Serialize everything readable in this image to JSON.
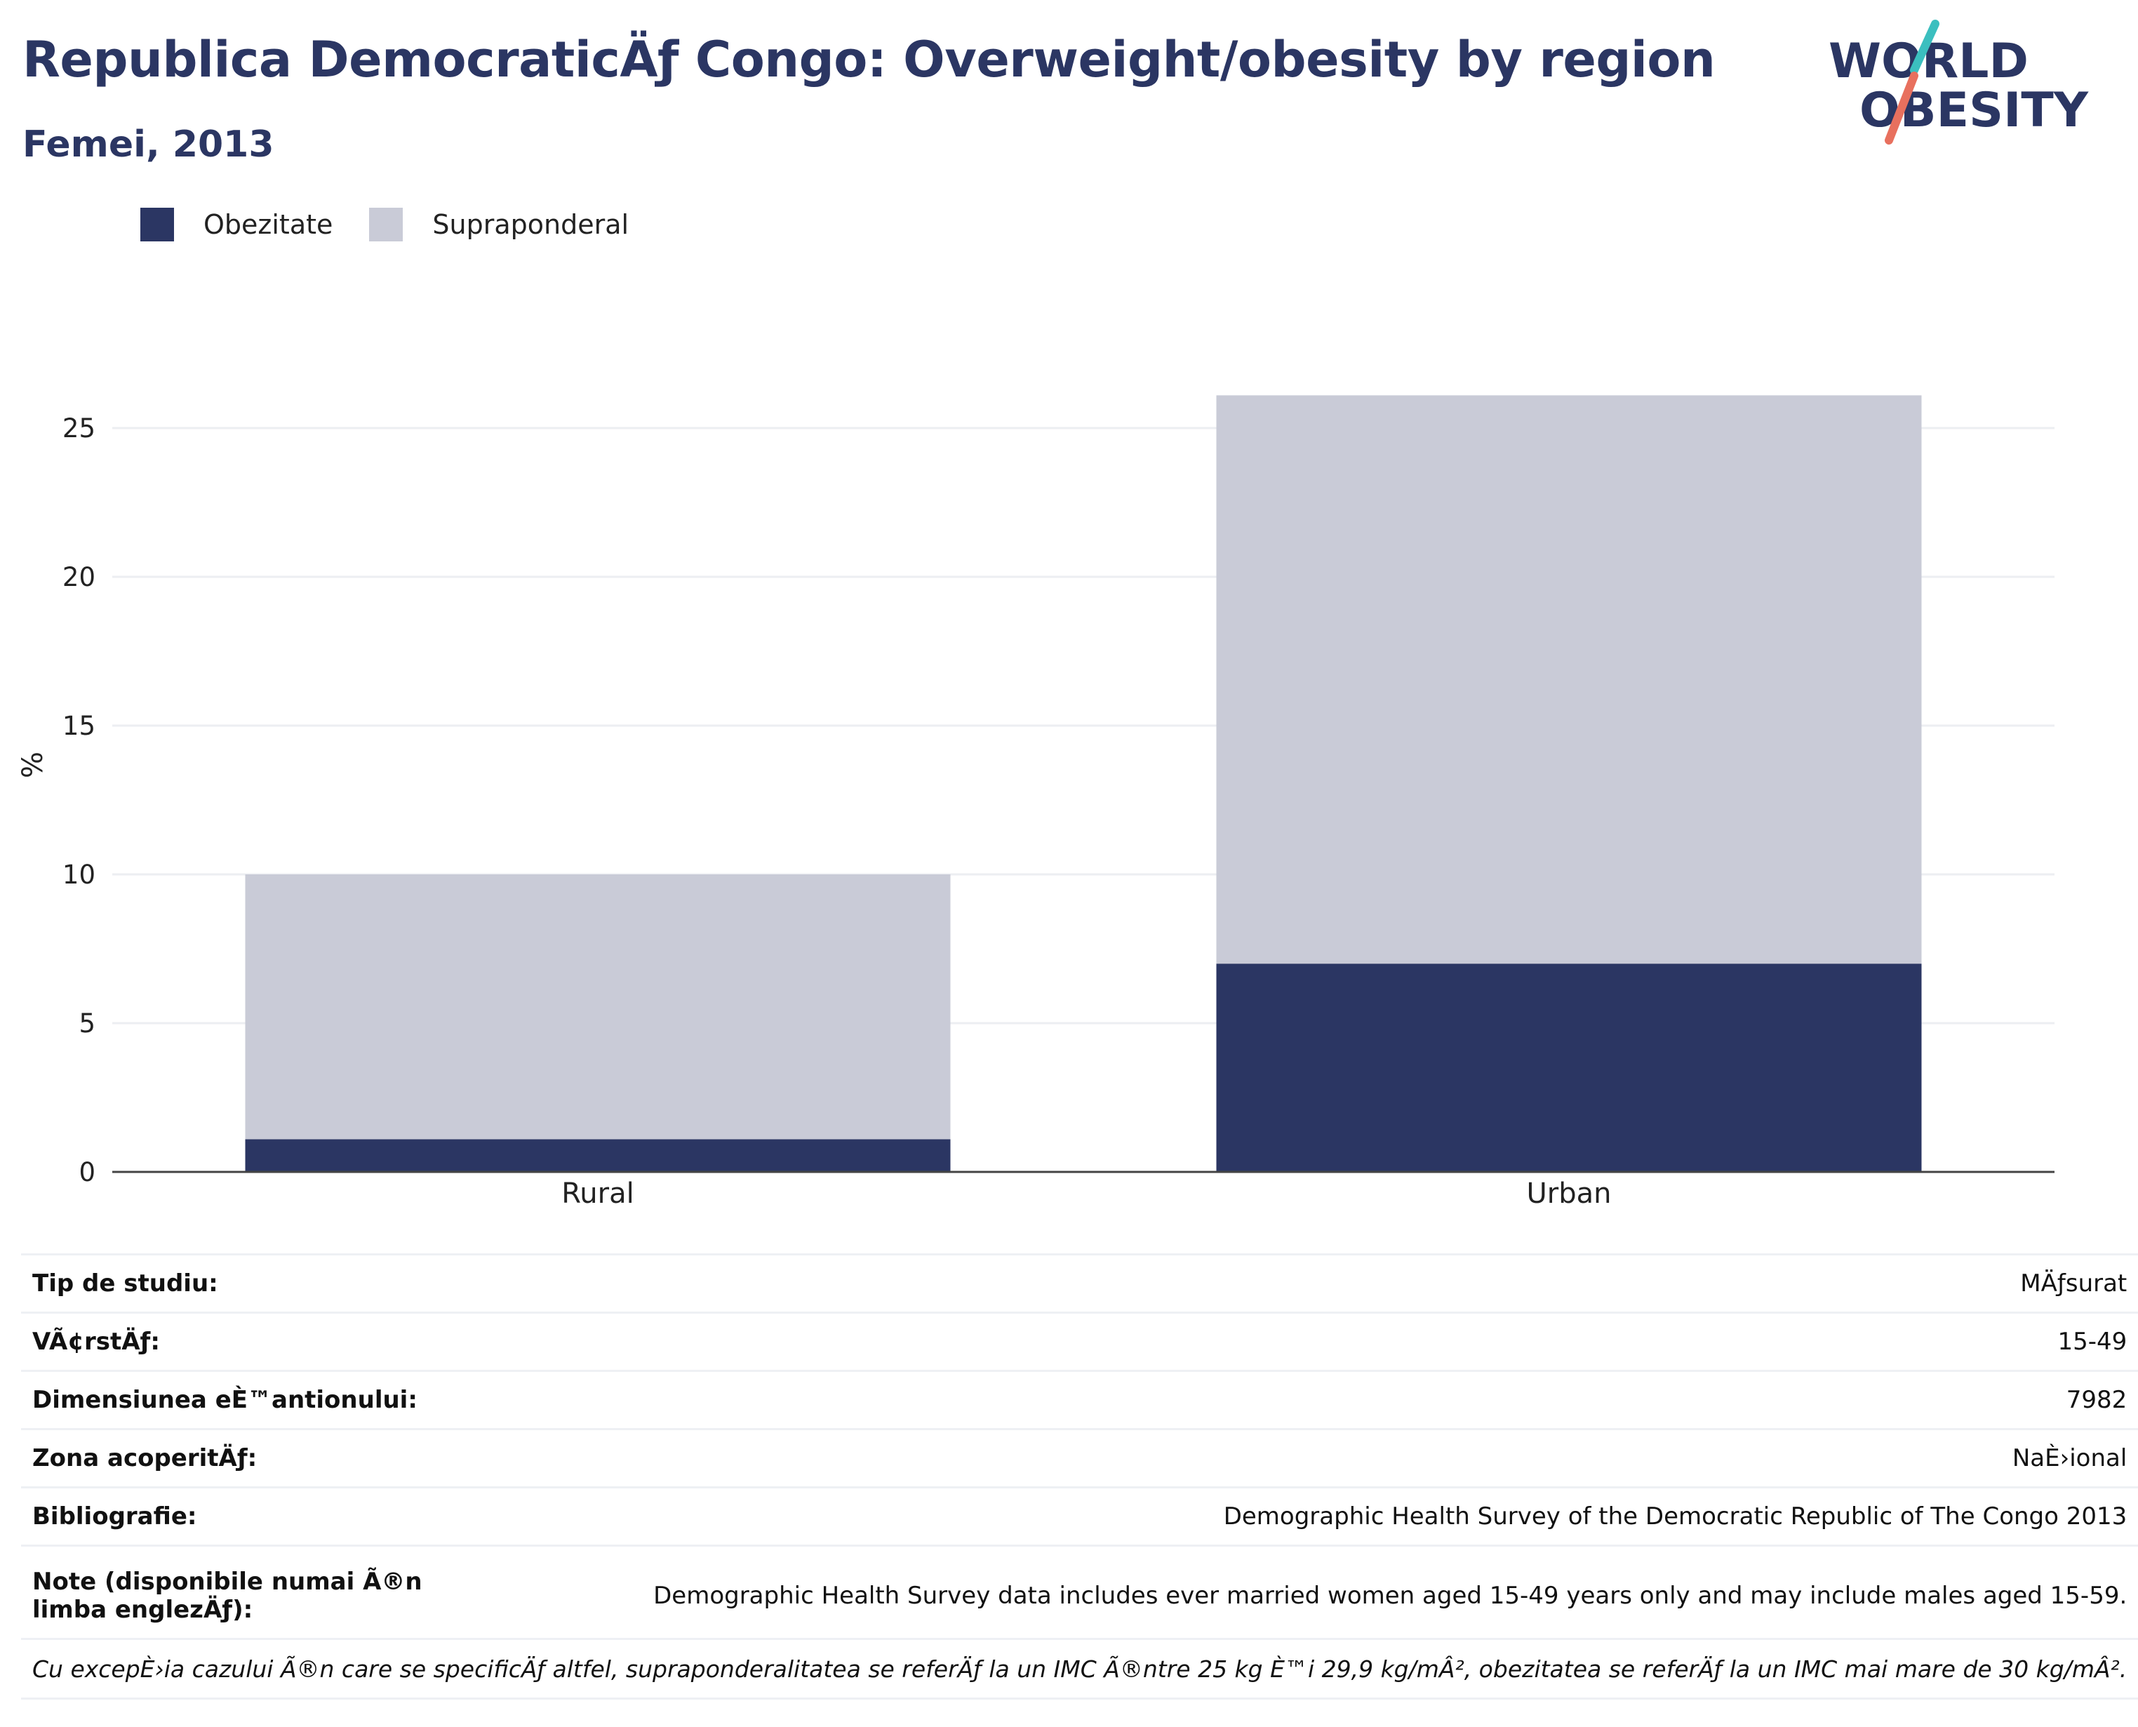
{
  "header": {
    "title": "Republica DemocraticÄƒ Congo: Overweight/obesity by region",
    "subtitle": "Femei, 2013"
  },
  "logo": {
    "line1": "WORLD",
    "line2": "OBESITY",
    "accent_colors": [
      "#3bbfbf",
      "#e8705e"
    ]
  },
  "legend": [
    {
      "label": "Obezitate",
      "color": "#2b3663"
    },
    {
      "label": "Supraponderal",
      "color": "#c9cbd7"
    }
  ],
  "chart_data": {
    "type": "bar",
    "stacked": true,
    "categories": [
      "Rural",
      "Urban"
    ],
    "series": [
      {
        "name": "Obezitate",
        "values": [
          1.1,
          7.0
        ],
        "color": "#2b3663"
      },
      {
        "name": "Supraponderal",
        "values": [
          8.9,
          19.1
        ],
        "color": "#c9cbd7"
      }
    ],
    "ylabel": "%",
    "ylim": [
      0,
      26.1
    ],
    "yticks": [
      0,
      5,
      10,
      15,
      20,
      25
    ],
    "grid": true,
    "legend_position": "top-left"
  },
  "info": {
    "rows": [
      {
        "key": "Tip de studiu:",
        "value": "MÄƒsurat"
      },
      {
        "key": "VÃ¢rstÄƒ:",
        "value": "15-49"
      },
      {
        "key": "Dimensiunea eÈ™antionului:",
        "value": "7982"
      },
      {
        "key": "Zona acoperitÄƒ:",
        "value": "NaÈ›ional"
      },
      {
        "key": "Bibliografie:",
        "value": "Demographic Health Survey of the Democratic Republic of The Congo 2013"
      },
      {
        "key": "Note (disponibile numai Ã®n limba englezÄƒ):",
        "value": "Demographic Health Survey data includes ever married women aged 15-49 years only and may include males aged 15-59."
      }
    ],
    "footnote": "Cu excepÈ›ia cazului Ã®n care se specificÄƒ altfel, supraponderalitatea se referÄƒ la un IMC Ã®ntre 25 kg È™i 29,9 kg/mÂ², obezitatea se referÄƒ la un IMC mai mare de 30 kg/mÂ²."
  }
}
